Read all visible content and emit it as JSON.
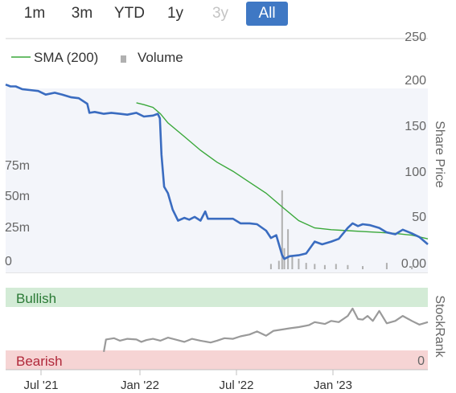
{
  "range_selector": {
    "buttons": [
      {
        "label": "1m",
        "state": "normal"
      },
      {
        "label": "3m",
        "state": "normal"
      },
      {
        "label": "YTD",
        "state": "normal"
      },
      {
        "label": "1y",
        "state": "normal"
      },
      {
        "label": "3y",
        "state": "disabled"
      },
      {
        "label": "All",
        "state": "active"
      }
    ]
  },
  "legend": {
    "sma_label": "SMA (200)",
    "volume_label": "Volume",
    "sma_color": "#3aa83a",
    "volume_color": "#b0b0b0"
  },
  "colors": {
    "price_line": "#3a6cc0",
    "price_fill": "#f3f5fa",
    "sma_line": "#3aa83a",
    "volume_bar": "#b0b0b0",
    "bullish_band": "#d3ebd6",
    "bullish_text": "#2a7a35",
    "bearish_band": "#f6d4d4",
    "bearish_text": "#b0283a",
    "stockrank_line": "#9a9a9a"
  },
  "chart_data": [
    {
      "type": "line",
      "x_ticks": [
        "Jul '21",
        "Jan '22",
        "Jul '22",
        "Jan '23"
      ],
      "x_range": [
        "2021-05-01",
        "2023-07-01"
      ],
      "price_axis": {
        "label": "Share Price",
        "ticks": [
          "250",
          "200",
          "150",
          "100",
          "50",
          "0.00"
        ],
        "range": [
          0,
          250
        ]
      },
      "volume_axis": {
        "ticks": [
          "75m",
          "50m",
          "25m",
          "0"
        ],
        "range": [
          0,
          115
        ]
      },
      "series": [
        {
          "name": "",
          "kind": "price",
          "x": [
            "2021-05-01",
            "2021-05-10",
            "2021-05-20",
            "2021-06-01",
            "2021-06-15",
            "2021-07-01",
            "2021-07-15",
            "2021-08-01",
            "2021-08-15",
            "2021-09-01",
            "2021-09-15",
            "2021-10-01",
            "2021-10-05",
            "2021-10-15",
            "2021-11-01",
            "2021-11-15",
            "2021-12-01",
            "2021-12-15",
            "2022-01-01",
            "2022-01-15",
            "2022-02-01",
            "2022-02-10",
            "2022-02-14",
            "2022-02-17",
            "2022-02-22",
            "2022-03-01",
            "2022-03-10",
            "2022-03-20",
            "2022-04-01",
            "2022-04-10",
            "2022-04-20",
            "2022-05-01",
            "2022-05-10",
            "2022-05-15",
            "2022-06-01",
            "2022-06-15",
            "2022-07-01",
            "2022-07-15",
            "2022-08-01",
            "2022-08-15",
            "2022-09-01",
            "2022-09-10",
            "2022-09-20",
            "2022-10-01",
            "2022-10-05",
            "2022-10-15",
            "2022-11-01",
            "2022-11-15",
            "2022-12-01",
            "2022-12-15",
            "2023-01-01",
            "2023-01-15",
            "2023-02-01",
            "2023-02-10",
            "2023-02-20",
            "2023-03-01",
            "2023-03-15",
            "2023-04-01",
            "2023-04-15",
            "2023-05-01",
            "2023-05-15",
            "2023-06-01",
            "2023-06-15",
            "2023-07-01"
          ],
          "y": [
            197,
            195,
            195,
            192,
            191,
            190,
            186,
            188,
            186,
            183,
            182,
            176,
            166,
            167,
            165,
            166,
            165,
            164,
            166,
            162,
            163,
            165,
            160,
            120,
            85,
            78,
            60,
            48,
            51,
            49,
            52,
            48,
            58,
            50,
            50,
            50,
            50,
            45,
            45,
            44,
            37,
            29,
            32,
            10,
            6,
            9,
            10,
            12,
            25,
            22,
            25,
            28,
            40,
            45,
            42,
            44,
            43,
            40,
            35,
            33,
            38,
            34,
            30,
            22
          ]
        },
        {
          "name": "SMA (200)",
          "kind": "sma",
          "x": [
            "2022-01-01",
            "2022-01-15",
            "2022-02-01",
            "2022-02-15",
            "2022-03-01",
            "2022-04-01",
            "2022-05-01",
            "2022-06-01",
            "2022-07-01",
            "2022-08-01",
            "2022-09-01",
            "2022-10-01",
            "2022-11-01",
            "2022-12-01",
            "2023-01-01",
            "2023-02-01",
            "2023-03-01",
            "2023-04-01",
            "2023-05-01",
            "2023-06-01",
            "2023-07-01"
          ],
          "y": [
            177,
            175,
            172,
            165,
            155,
            140,
            125,
            112,
            102,
            90,
            78,
            63,
            48,
            40,
            38,
            37,
            36,
            35,
            34,
            32,
            28
          ]
        },
        {
          "name": "Volume",
          "kind": "volume",
          "x": [
            "2022-09-10",
            "2022-09-25",
            "2022-10-01",
            "2022-10-05",
            "2022-10-12",
            "2022-10-20",
            "2022-11-01",
            "2022-11-15",
            "2022-12-01",
            "2022-12-20",
            "2023-01-10",
            "2023-02-01",
            "2023-03-01",
            "2023-04-15",
            "2023-06-01"
          ],
          "y": [
            5,
            8,
            75,
            20,
            38,
            12,
            10,
            6,
            5,
            4,
            5,
            4,
            3,
            6,
            3
          ]
        }
      ]
    },
    {
      "type": "line",
      "name": "StockRank",
      "axis_label": "StockRank",
      "band_labels": {
        "top": "Bullish",
        "bottom": "Bearish"
      },
      "y_ticks": [
        "0"
      ],
      "range": [
        0,
        100
      ],
      "series": [
        {
          "name": "",
          "x": [
            "2021-11-01",
            "2021-11-05",
            "2021-11-20",
            "2021-12-01",
            "2021-12-15",
            "2022-01-01",
            "2022-01-10",
            "2022-01-20",
            "2022-02-01",
            "2022-02-15",
            "2022-03-01",
            "2022-03-15",
            "2022-04-01",
            "2022-04-15",
            "2022-05-01",
            "2022-05-20",
            "2022-06-01",
            "2022-06-15",
            "2022-07-01",
            "2022-07-15",
            "2022-08-01",
            "2022-08-15",
            "2022-09-01",
            "2022-09-15",
            "2022-10-01",
            "2022-10-15",
            "2022-11-01",
            "2022-11-20",
            "2022-12-01",
            "2022-12-20",
            "2023-01-01",
            "2023-01-15",
            "2023-02-01",
            "2023-02-10",
            "2023-02-20",
            "2023-03-01",
            "2023-03-10",
            "2023-03-20",
            "2023-04-01",
            "2023-04-15",
            "2023-05-01",
            "2023-05-15",
            "2023-06-01",
            "2023-06-15",
            "2023-07-01"
          ],
          "y": [
            12,
            32,
            34,
            30,
            33,
            32,
            28,
            31,
            33,
            30,
            35,
            32,
            28,
            33,
            30,
            27,
            30,
            34,
            33,
            37,
            40,
            45,
            38,
            46,
            48,
            50,
            52,
            55,
            60,
            57,
            62,
            60,
            70,
            82,
            65,
            64,
            70,
            62,
            78,
            58,
            62,
            70,
            62,
            56,
            60
          ]
        }
      ]
    }
  ]
}
